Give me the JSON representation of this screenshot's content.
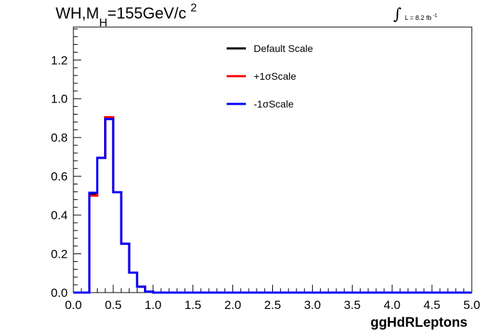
{
  "title": {
    "main": "WH,M",
    "subscript": "H",
    "rest": "=155GeV/c",
    "superscript": "2"
  },
  "luminosity": {
    "integral_symbol": "∫",
    "text": "L = 8.2 fb",
    "superscript": "-1"
  },
  "chart_data": {
    "type": "line",
    "xlabel": "ggHdRLeptons",
    "ylabel": "",
    "xlim": [
      0.0,
      5.0
    ],
    "ylim": [
      0.0,
      1.37
    ],
    "x_ticks": [
      "0.0",
      "0.5",
      "1.0",
      "1.5",
      "2.0",
      "2.5",
      "3.0",
      "3.5",
      "4.0",
      "4.5",
      "5.0"
    ],
    "y_ticks": [
      "0.0",
      "0.2",
      "0.4",
      "0.6",
      "0.8",
      "1.0",
      "1.2"
    ],
    "grid": false,
    "legend_position": "top-center",
    "bin_edges": [
      0.0,
      0.1,
      0.2,
      0.3,
      0.4,
      0.5,
      0.6,
      0.7,
      0.8,
      0.9,
      1.0,
      1.1,
      1.2,
      1.3,
      1.4,
      1.5,
      1.6,
      1.7,
      1.8,
      1.9,
      2.0,
      2.1,
      2.2,
      2.3,
      2.4,
      2.5,
      2.6,
      2.7,
      2.8,
      2.9,
      3.0,
      3.1,
      3.2,
      3.3,
      3.4,
      3.5,
      3.6,
      3.7,
      3.8,
      3.9,
      4.0,
      4.1,
      4.2,
      4.3,
      4.4,
      4.5,
      4.6,
      4.7,
      4.8,
      4.9,
      5.0
    ],
    "series": [
      {
        "name": "Default Scale",
        "color": "#000000",
        "values": [
          0,
          0,
          0.51,
          0.695,
          0.902,
          0.518,
          0.252,
          0.103,
          0.03,
          0.005,
          0,
          0,
          0,
          0,
          0,
          0,
          0,
          0,
          0,
          0,
          0,
          0,
          0,
          0,
          0,
          0,
          0,
          0,
          0,
          0,
          0,
          0,
          0,
          0,
          0,
          0,
          0,
          0,
          0,
          0,
          0,
          0,
          0,
          0,
          0,
          0,
          0,
          0,
          0,
          0
        ]
      },
      {
        "name": "+1σScale",
        "color": "#ff0000",
        "values": [
          0,
          0,
          0.5,
          0.695,
          0.905,
          0.518,
          0.252,
          0.103,
          0.03,
          0.005,
          0,
          0,
          0,
          0,
          0,
          0,
          0,
          0,
          0,
          0,
          0,
          0,
          0,
          0,
          0,
          0,
          0,
          0,
          0,
          0,
          0,
          0,
          0,
          0,
          0,
          0,
          0,
          0,
          0,
          0,
          0,
          0,
          0,
          0,
          0,
          0,
          0,
          0,
          0,
          0
        ]
      },
      {
        "name": "-1σScale",
        "color": "#0000ff",
        "values": [
          0,
          0,
          0.515,
          0.695,
          0.895,
          0.518,
          0.252,
          0.103,
          0.03,
          0.005,
          0,
          0,
          0,
          0,
          0,
          0,
          0,
          0,
          0,
          0,
          0,
          0,
          0,
          0,
          0,
          0,
          0,
          0,
          0,
          0,
          0,
          0,
          0,
          0,
          0,
          0,
          0,
          0,
          0,
          0,
          0,
          0,
          0,
          0,
          0,
          0,
          0,
          0,
          0,
          0
        ]
      }
    ]
  }
}
